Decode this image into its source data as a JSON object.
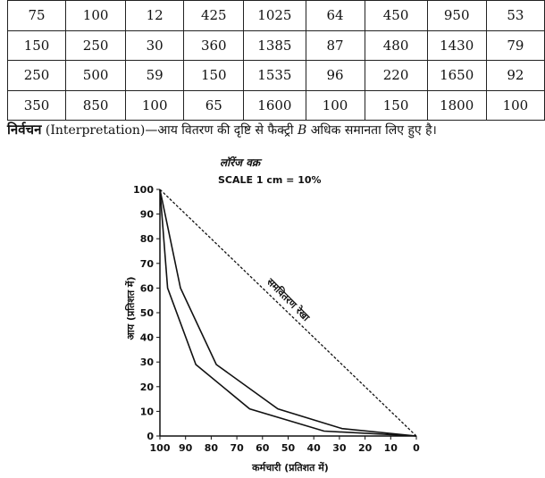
{
  "table": {
    "rows": [
      [
        "75",
        "100",
        "12",
        "425",
        "1025",
        "64",
        "450",
        "950",
        "53"
      ],
      [
        "150",
        "250",
        "30",
        "360",
        "1385",
        "87",
        "480",
        "1430",
        "79"
      ],
      [
        "250",
        "500",
        "59",
        "150",
        "1535",
        "96",
        "220",
        "1650",
        "92"
      ],
      [
        "350",
        "850",
        "100",
        "65",
        "1600",
        "100",
        "150",
        "1800",
        "100"
      ]
    ]
  },
  "interpretation": {
    "label": "निर्वचन",
    "english": "(Interpretation)",
    "text_before": "—आय वितरण की दृष्टि से फैक्ट्री",
    "factory": "B",
    "text_after": "अधिक समानता लिए हुए है।"
  },
  "chart_data": {
    "type": "line",
    "title": "लॉरेंज वक्र",
    "subtitle": "SCALE 1 cm = 10%",
    "xlabel": "कर्मचारी (प्रतिशत में)",
    "ylabel": "आय (प्रतिशत में)",
    "xlim": [
      100,
      0
    ],
    "ylim": [
      0,
      100
    ],
    "x_reversed": true,
    "xticks": [
      "100",
      "90",
      "80",
      "70",
      "60",
      "50",
      "40",
      "30",
      "20",
      "10",
      "0"
    ],
    "yticks": [
      "0",
      "10",
      "20",
      "30",
      "40",
      "50",
      "60",
      "70",
      "80",
      "90",
      "100"
    ],
    "equality_line_label": "समवितरण रेखा",
    "series": [
      {
        "values": [
          [
            0,
            0
          ],
          [
            29,
            3
          ],
          [
            54,
            11
          ],
          [
            78,
            29
          ],
          [
            92,
            60
          ],
          [
            100,
            100
          ]
        ]
      },
      {
        "values": [
          [
            0,
            0
          ],
          [
            36,
            2
          ],
          [
            65,
            11
          ],
          [
            86,
            29
          ],
          [
            97,
            60
          ],
          [
            100,
            100
          ]
        ]
      }
    ],
    "equality_line": [
      [
        0,
        0
      ],
      [
        100,
        100
      ]
    ],
    "grid": false
  }
}
